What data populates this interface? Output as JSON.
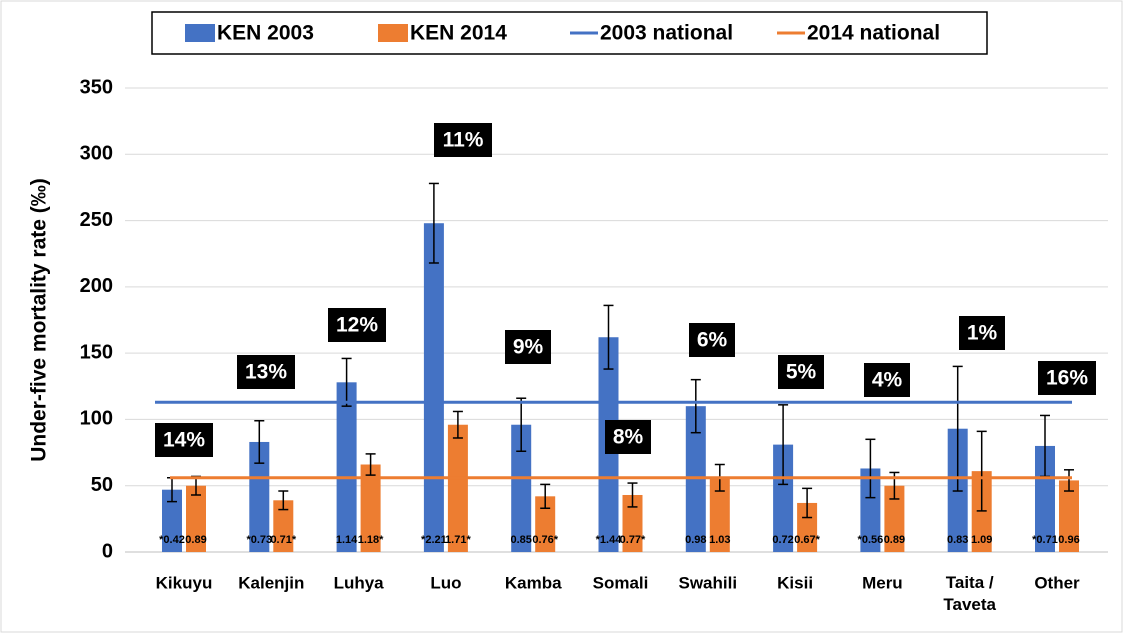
{
  "chart_data": {
    "type": "bar",
    "y_label": "Under-five mortality rate (‰)",
    "categories": [
      "Kikuyu",
      "Kalenjin",
      "Luhya",
      "Luo",
      "Kamba",
      "Somali",
      "Swahili",
      "Kisii",
      "Meru",
      "Taita / Taveta",
      "Other"
    ],
    "series": [
      {
        "name": "KEN 2003",
        "color": "#4472c4",
        "values": [
          47,
          83,
          128,
          248,
          96,
          162,
          110,
          81,
          63,
          93,
          80
        ],
        "errors": [
          9,
          16,
          18,
          30,
          20,
          24,
          20,
          30,
          22,
          47,
          23
        ],
        "bottom_labels": [
          "*0.42",
          "*0.73",
          "1.14",
          "*2.21",
          "0.85",
          "*1.44",
          "0.98",
          "0.72",
          "*0.56",
          "0.83",
          "*0.71"
        ]
      },
      {
        "name": "KEN 2014",
        "color": "#ed7d31",
        "values": [
          50,
          39,
          66,
          96,
          42,
          43,
          56,
          37,
          50,
          61,
          54
        ],
        "errors": [
          7,
          7,
          8,
          10,
          9,
          9,
          10,
          11,
          10,
          30,
          8
        ],
        "bottom_labels": [
          "0.89",
          "0.71*",
          "1.18*",
          "1.71*",
          "0.76*",
          "0.77*",
          "1.03",
          "0.67*",
          "0.89",
          "1.09",
          "0.96"
        ]
      }
    ],
    "reference_lines": [
      {
        "name": "2003 national",
        "color": "#4472c4",
        "value": 113
      },
      {
        "name": "2014 national",
        "color": "#ed7d31",
        "value": 56
      }
    ],
    "annotations": [
      "14%",
      "13%",
      "12%",
      "11%",
      "9%",
      "8%",
      "6%",
      "5%",
      "4%",
      "1%",
      "16%"
    ],
    "ylim": [
      0,
      350
    ],
    "yticks": [
      0,
      50,
      100,
      150,
      200,
      250,
      300,
      350
    ],
    "grid": true
  }
}
